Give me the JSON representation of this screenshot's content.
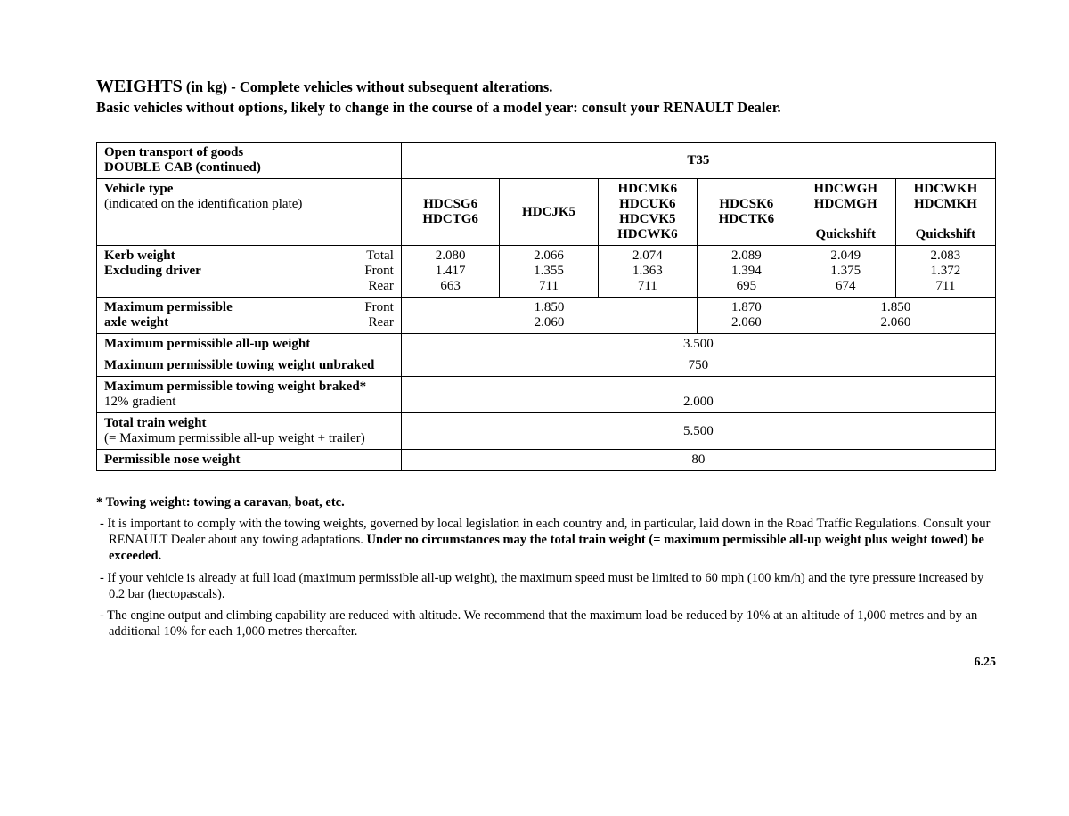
{
  "heading": {
    "main": "WEIGHTS",
    "rest": " (in kg) - Complete vehicles without subsequent alterations.",
    "subtitle": "Basic vehicles without options, likely to change in the course of a model year: consult your RENAULT Dealer."
  },
  "table": {
    "top_left_line1": "Open transport of goods",
    "top_left_line2": "DOUBLE CAB (continued)",
    "model_header": "T35",
    "vehicle_type_label": "Vehicle type",
    "vehicle_type_sub": "(indicated on the identification plate)",
    "cols": [
      {
        "l1": "HDCSG6",
        "l2": "HDCTG6",
        "l3": "",
        "l4": ""
      },
      {
        "l1": "HDCJK5",
        "l2": "",
        "l3": "",
        "l4": ""
      },
      {
        "l1": "HDCMK6",
        "l2": "HDCUK6",
        "l3": "HDCVK5",
        "l4": "HDCWK6"
      },
      {
        "l1": "HDCSK6",
        "l2": "HDCTK6",
        "l3": "",
        "l4": ""
      },
      {
        "l1": "HDCWGH",
        "l2": "HDCMGH",
        "l3": "",
        "l4": "Quickshift"
      },
      {
        "l1": "HDCWKH",
        "l2": "HDCMKH",
        "l3": "",
        "l4": "Quickshift"
      }
    ],
    "kerb": {
      "label": "Kerb weight",
      "label2": "Excluding driver",
      "r1": "Total",
      "r2": "Front",
      "r3": "Rear",
      "data": [
        [
          "2.080",
          "1.417",
          "663"
        ],
        [
          "2.066",
          "1.355",
          "711"
        ],
        [
          "2.074",
          "1.363",
          "711"
        ],
        [
          "2.089",
          "1.394",
          "695"
        ],
        [
          "2.049",
          "1.375",
          "674"
        ],
        [
          "2.083",
          "1.372",
          "711"
        ]
      ]
    },
    "axle": {
      "label": "Maximum permissible",
      "label2": "axle weight",
      "r1": "Front",
      "r2": "Rear",
      "g1_front": "1.850",
      "g1_rear": "2.060",
      "g2_front": "1.870",
      "g2_rear": "2.060",
      "g3_front": "1.850",
      "g3_rear": "2.060"
    },
    "allup": {
      "label": "Maximum permissible all-up weight",
      "val": "3.500"
    },
    "tow_unbraked": {
      "label": "Maximum permissible towing weight unbraked",
      "val": "750"
    },
    "tow_braked": {
      "label": "Maximum permissible towing weight braked*",
      "label2": "12% gradient",
      "val": "2.000"
    },
    "train": {
      "label": "Total train weight",
      "label2": "(= Maximum permissible all-up weight + trailer)",
      "val": "5.500"
    },
    "nose": {
      "label": "Permissible nose weight",
      "val": "80"
    }
  },
  "footnotes": {
    "star": "* Towing weight: towing a caravan, boat, etc.",
    "n1a": "- It is important to comply with the towing weights, governed by local legislation in each country and, in particular, laid down in the Road Traffic Regulations. Consult your RENAULT Dealer about any towing adaptations. ",
    "n1b": "Under no circumstances may the total train weight (= maximum permissible all-up weight plus weight towed) be exceeded.",
    "n2": "- If your vehicle is already at full load (maximum permissible all-up weight), the maximum speed must be limited to 60 mph (100 km/h) and the tyre pressure increased by 0.2 bar (hectopascals).",
    "n3": "- The engine output and climbing capability are reduced with altitude. We recommend that the maximum load be reduced by 10% at an altitude of 1,000 metres and by an additional 10% for each 1,000 metres thereafter."
  },
  "page_number": "6.25"
}
